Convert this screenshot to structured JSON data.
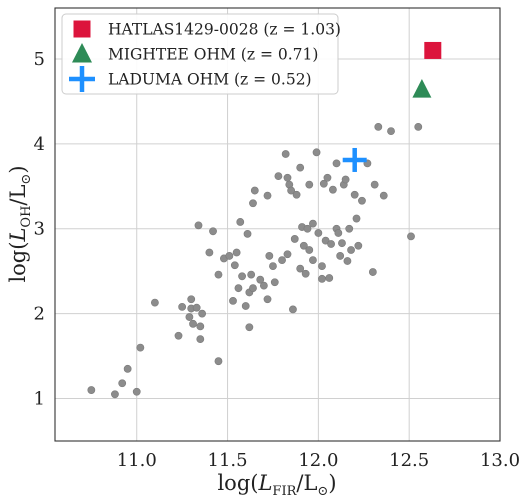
{
  "chart_data": {
    "type": "scatter",
    "title": "",
    "xlabel": "log(L_FIR/L_⊙)",
    "ylabel": "log(L_OH/L_⊙)",
    "xlim": [
      10.55,
      13.0
    ],
    "ylim": [
      0.5,
      5.6
    ],
    "xticks": [
      11.0,
      11.5,
      12.0,
      12.5,
      13.0
    ],
    "yticks": [
      1,
      2,
      3,
      4,
      5
    ],
    "grid": true,
    "legend_position": "top-left",
    "series": [
      {
        "marker": "circle",
        "color": "#8c8c8c",
        "points": [
          [
            10.75,
            1.1
          ],
          [
            10.88,
            1.05
          ],
          [
            10.92,
            1.18
          ],
          [
            10.95,
            1.35
          ],
          [
            11.0,
            1.08
          ],
          [
            11.02,
            1.6
          ],
          [
            11.1,
            2.13
          ],
          [
            11.23,
            1.74
          ],
          [
            11.25,
            2.08
          ],
          [
            11.29,
            1.96
          ],
          [
            11.3,
            2.17
          ],
          [
            11.3,
            2.06
          ],
          [
            11.31,
            1.88
          ],
          [
            11.33,
            2.07
          ],
          [
            11.34,
            3.04
          ],
          [
            11.35,
            1.85
          ],
          [
            11.36,
            2.0
          ],
          [
            11.35,
            1.7
          ],
          [
            11.4,
            2.72
          ],
          [
            11.42,
            2.97
          ],
          [
            11.45,
            1.44
          ],
          [
            11.45,
            2.46
          ],
          [
            11.48,
            2.65
          ],
          [
            11.51,
            2.68
          ],
          [
            11.53,
            2.15
          ],
          [
            11.54,
            2.57
          ],
          [
            11.55,
            2.72
          ],
          [
            11.56,
            2.3
          ],
          [
            11.57,
            3.08
          ],
          [
            11.58,
            2.44
          ],
          [
            11.6,
            2.09
          ],
          [
            11.61,
            2.94
          ],
          [
            11.62,
            1.84
          ],
          [
            11.62,
            2.25
          ],
          [
            11.63,
            2.46
          ],
          [
            11.64,
            2.3
          ],
          [
            11.64,
            3.3
          ],
          [
            11.65,
            3.45
          ],
          [
            11.68,
            2.4
          ],
          [
            11.7,
            2.33
          ],
          [
            11.72,
            2.17
          ],
          [
            11.72,
            3.39
          ],
          [
            11.73,
            2.68
          ],
          [
            11.75,
            2.56
          ],
          [
            11.76,
            2.37
          ],
          [
            11.78,
            3.62
          ],
          [
            11.8,
            2.63
          ],
          [
            11.82,
            3.88
          ],
          [
            11.83,
            2.7
          ],
          [
            11.83,
            3.6
          ],
          [
            11.84,
            3.52
          ],
          [
            11.85,
            3.45
          ],
          [
            11.86,
            2.05
          ],
          [
            11.87,
            2.88
          ],
          [
            11.88,
            3.4
          ],
          [
            11.9,
            3.72
          ],
          [
            11.9,
            2.53
          ],
          [
            11.91,
            3.02
          ],
          [
            11.92,
            2.8
          ],
          [
            11.93,
            2.47
          ],
          [
            11.94,
            3.0
          ],
          [
            11.95,
            2.75
          ],
          [
            11.95,
            3.52
          ],
          [
            11.97,
            2.63
          ],
          [
            11.97,
            3.06
          ],
          [
            11.99,
            3.9
          ],
          [
            12.0,
            2.95
          ],
          [
            12.02,
            2.41
          ],
          [
            12.02,
            2.56
          ],
          [
            12.03,
            3.53
          ],
          [
            12.04,
            2.86
          ],
          [
            12.05,
            3.6
          ],
          [
            12.06,
            2.42
          ],
          [
            12.07,
            2.82
          ],
          [
            12.08,
            3.46
          ],
          [
            12.1,
            3.77
          ],
          [
            12.1,
            3.0
          ],
          [
            12.11,
            2.95
          ],
          [
            12.12,
            2.68
          ],
          [
            12.13,
            2.83
          ],
          [
            12.14,
            3.52
          ],
          [
            12.15,
            3.58
          ],
          [
            12.16,
            2.62
          ],
          [
            12.17,
            3.0
          ],
          [
            12.18,
            2.75
          ],
          [
            12.2,
            3.4
          ],
          [
            12.21,
            3.12
          ],
          [
            12.22,
            2.8
          ],
          [
            12.24,
            3.33
          ],
          [
            12.27,
            3.77
          ],
          [
            12.3,
            2.49
          ],
          [
            12.31,
            3.52
          ],
          [
            12.33,
            4.2
          ],
          [
            12.36,
            3.39
          ],
          [
            12.4,
            4.15
          ],
          [
            12.51,
            2.91
          ],
          [
            12.55,
            4.2
          ]
        ]
      },
      {
        "name": "HATLAS1429-0028 (z = 1.03)",
        "marker": "square",
        "color": "#dc143c",
        "points": [
          [
            12.63,
            5.1
          ]
        ]
      },
      {
        "name": "MIGHTEE OHM (z = 0.71)",
        "marker": "triangle",
        "color": "#2e8b57",
        "points": [
          [
            12.57,
            4.64
          ]
        ]
      },
      {
        "name": "LADUMA OHM (z = 0.52)",
        "marker": "plus",
        "color": "#1e90ff",
        "points": [
          [
            12.2,
            3.81
          ]
        ]
      }
    ]
  }
}
